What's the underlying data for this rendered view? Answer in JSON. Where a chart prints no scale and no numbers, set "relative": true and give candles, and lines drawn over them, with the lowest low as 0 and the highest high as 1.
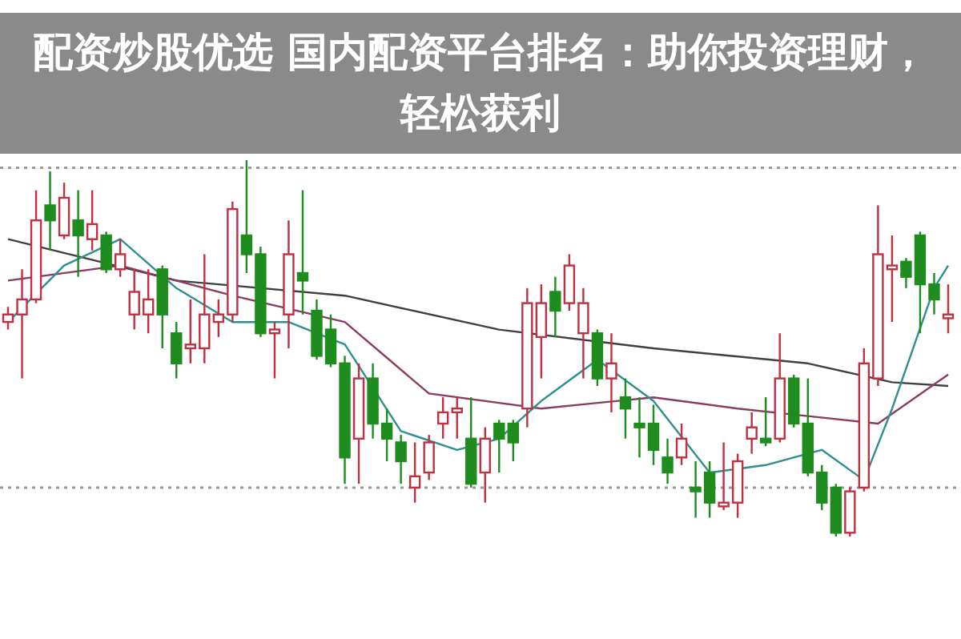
{
  "chart_data": {
    "type": "candlestick",
    "title": "配资炒股优选 国内配资平台排名：助你投资理财，轻松获利",
    "relative": true,
    "categories": [
      null,
      null,
      null,
      null,
      null,
      null,
      null,
      null,
      null,
      null,
      null,
      null,
      null,
      null,
      null,
      null,
      null,
      null,
      null,
      null,
      null,
      null,
      null,
      null,
      null,
      null,
      null,
      null,
      null,
      null,
      null,
      null,
      null,
      null,
      null,
      null,
      null,
      null,
      null,
      null,
      null,
      null,
      null,
      null,
      null,
      null,
      null,
      null,
      null,
      null,
      null,
      null,
      null,
      null,
      null,
      null,
      null,
      null,
      null,
      null,
      null,
      null,
      null,
      null,
      null,
      null,
      null,
      null
    ],
    "ohlc": [
      [
        0.57,
        0.61,
        0.55,
        0.59
      ],
      [
        0.59,
        0.71,
        0.42,
        0.63
      ],
      [
        0.63,
        0.92,
        0.62,
        0.84
      ],
      [
        0.88,
        0.97,
        0.76,
        0.84
      ],
      [
        0.8,
        0.94,
        0.79,
        0.9
      ],
      [
        0.84,
        0.92,
        0.69,
        0.8
      ],
      [
        0.79,
        0.92,
        0.76,
        0.83
      ],
      [
        0.8,
        0.81,
        0.7,
        0.71
      ],
      [
        0.71,
        0.79,
        0.69,
        0.75
      ],
      [
        0.59,
        0.71,
        0.55,
        0.65
      ],
      [
        0.59,
        0.71,
        0.54,
        0.63
      ],
      [
        0.71,
        0.72,
        0.5,
        0.59
      ],
      [
        0.54,
        0.57,
        0.42,
        0.46
      ],
      [
        0.5,
        0.63,
        0.46,
        0.51
      ],
      [
        0.5,
        0.75,
        0.46,
        0.59
      ],
      [
        0.57,
        0.63,
        0.53,
        0.59
      ],
      [
        0.59,
        0.89,
        0.57,
        0.87
      ],
      [
        0.8,
        1.0,
        0.7,
        0.75
      ],
      [
        0.75,
        0.77,
        0.53,
        0.54
      ],
      [
        0.54,
        0.57,
        0.42,
        0.55
      ],
      [
        0.59,
        0.84,
        0.5,
        0.75
      ],
      [
        0.7,
        0.92,
        0.59,
        0.68
      ],
      [
        0.6,
        0.63,
        0.47,
        0.48
      ],
      [
        0.55,
        0.59,
        0.45,
        0.46
      ],
      [
        0.46,
        0.48,
        0.14,
        0.21
      ],
      [
        0.26,
        0.46,
        0.14,
        0.42
      ],
      [
        0.42,
        0.46,
        0.26,
        0.3
      ],
      [
        0.3,
        0.34,
        0.2,
        0.26
      ],
      [
        0.25,
        0.27,
        0.14,
        0.2
      ],
      [
        0.13,
        0.25,
        0.09,
        0.16
      ],
      [
        0.17,
        0.27,
        0.15,
        0.25
      ],
      [
        0.3,
        0.37,
        0.26,
        0.33
      ],
      [
        0.33,
        0.37,
        0.26,
        0.34
      ],
      [
        0.26,
        0.37,
        0.13,
        0.14
      ],
      [
        0.17,
        0.29,
        0.09,
        0.26
      ],
      [
        0.3,
        0.31,
        0.17,
        0.26
      ],
      [
        0.3,
        0.31,
        0.2,
        0.25
      ],
      [
        0.34,
        0.66,
        0.29,
        0.62
      ],
      [
        0.53,
        0.67,
        0.42,
        0.62
      ],
      [
        0.65,
        0.69,
        0.53,
        0.6
      ],
      [
        0.62,
        0.75,
        0.6,
        0.72
      ],
      [
        0.54,
        0.66,
        0.42,
        0.62
      ],
      [
        0.54,
        0.55,
        0.4,
        0.42
      ],
      [
        0.42,
        0.54,
        0.33,
        0.46
      ],
      [
        0.37,
        0.42,
        0.26,
        0.34
      ],
      [
        0.3,
        0.37,
        0.21,
        0.29
      ],
      [
        0.3,
        0.35,
        0.19,
        0.23
      ],
      [
        0.21,
        0.26,
        0.14,
        0.17
      ],
      [
        0.21,
        0.3,
        0.19,
        0.26
      ],
      [
        0.13,
        0.2,
        0.05,
        0.12
      ],
      [
        0.17,
        0.2,
        0.05,
        0.09
      ],
      [
        0.08,
        0.25,
        0.07,
        0.09
      ],
      [
        0.09,
        0.22,
        0.05,
        0.2
      ],
      [
        0.26,
        0.33,
        0.22,
        0.29
      ],
      [
        0.26,
        0.37,
        0.24,
        0.25
      ],
      [
        0.26,
        0.54,
        0.25,
        0.42
      ],
      [
        0.42,
        0.43,
        0.29,
        0.3
      ],
      [
        0.3,
        0.42,
        0.16,
        0.17
      ],
      [
        0.17,
        0.19,
        0.07,
        0.09
      ],
      [
        0.13,
        0.14,
        0.0,
        0.01
      ],
      [
        0.01,
        0.13,
        0.0,
        0.12
      ],
      [
        0.13,
        0.5,
        0.12,
        0.46
      ],
      [
        0.42,
        0.88,
        0.4,
        0.75
      ],
      [
        0.71,
        0.8,
        0.57,
        0.72
      ],
      [
        0.73,
        0.74,
        0.66,
        0.69
      ],
      [
        0.8,
        0.81,
        0.54,
        0.67
      ],
      [
        0.67,
        0.7,
        0.59,
        0.63
      ],
      [
        0.58,
        0.67,
        0.54,
        0.59
      ]
    ],
    "colors": [
      "#c03040",
      "#c03040",
      "#c03040",
      "#1e8c1e",
      "#c03040",
      "#1e8c1e",
      "#c03040",
      "#1e8c1e",
      "#c03040",
      "#c03040",
      "#c03040",
      "#1e8c1e",
      "#1e8c1e",
      "#c03040",
      "#c03040",
      "#c03040",
      "#c03040",
      "#1e8c1e",
      "#1e8c1e",
      "#c03040",
      "#c03040",
      "#1e8c1e",
      "#1e8c1e",
      "#1e8c1e",
      "#1e8c1e",
      "#c03040",
      "#1e8c1e",
      "#1e8c1e",
      "#1e8c1e",
      "#c03040",
      "#c03040",
      "#c03040",
      "#c03040",
      "#1e8c1e",
      "#c03040",
      "#1e8c1e",
      "#1e8c1e",
      "#c03040",
      "#c03040",
      "#1e8c1e",
      "#c03040",
      "#c03040",
      "#1e8c1e",
      "#c03040",
      "#1e8c1e",
      "#1e8c1e",
      "#1e8c1e",
      "#1e8c1e",
      "#c03040",
      "#1e8c1e",
      "#1e8c1e",
      "#c03040",
      "#c03040",
      "#c03040",
      "#1e8c1e",
      "#c03040",
      "#1e8c1e",
      "#1e8c1e",
      "#1e8c1e",
      "#1e8c1e",
      "#c03040",
      "#c03040",
      "#c03040",
      "#c03040",
      "#1e8c1e",
      "#1e8c1e",
      "#1e8c1e",
      "#c03040"
    ],
    "series": [
      {
        "type": "line",
        "color": "#404040",
        "values": [
          0.79,
          null,
          null,
          null,
          null,
          null,
          null,
          null,
          null,
          null,
          null,
          null,
          0.68,
          null,
          null,
          null,
          null,
          null,
          null,
          null,
          null,
          null,
          null,
          null,
          0.64,
          null,
          null,
          null,
          null,
          null,
          null,
          null,
          null,
          null,
          null,
          0.55,
          null,
          null,
          null,
          null,
          null,
          null,
          null,
          null,
          null,
          null,
          0.5,
          null,
          null,
          null,
          null,
          null,
          null,
          null,
          null,
          null,
          null,
          0.46,
          null,
          null,
          null,
          null,
          null,
          0.41,
          null,
          null,
          null,
          0.4
        ]
      },
      {
        "type": "line",
        "color": "#8b3a62",
        "values": [
          0.68,
          null,
          null,
          null,
          null,
          null,
          null,
          null,
          0.72,
          null,
          null,
          null,
          null,
          null,
          null,
          null,
          0.64,
          null,
          null,
          null,
          null,
          null,
          null,
          null,
          0.57,
          null,
          null,
          null,
          null,
          null,
          0.38,
          null,
          null,
          null,
          null,
          null,
          null,
          null,
          0.34,
          null,
          null,
          null,
          null,
          null,
          null,
          null,
          0.37,
          null,
          null,
          null,
          null,
          null,
          0.34,
          null,
          null,
          null,
          null,
          0.32,
          null,
          null,
          null,
          null,
          0.3,
          null,
          null,
          null,
          null,
          0.43
        ]
      },
      {
        "type": "line",
        "color": "#2f8f8f",
        "values": [
          0.57,
          null,
          null,
          null,
          0.72,
          null,
          null,
          null,
          0.79,
          null,
          null,
          null,
          0.66,
          null,
          null,
          null,
          0.57,
          null,
          null,
          null,
          0.57,
          null,
          null,
          null,
          0.51,
          null,
          null,
          null,
          0.28,
          null,
          null,
          null,
          0.23,
          null,
          null,
          0.26,
          null,
          null,
          0.36,
          null,
          null,
          null,
          0.47,
          null,
          null,
          null,
          0.36,
          null,
          null,
          null,
          0.17,
          null,
          null,
          null,
          0.19,
          null,
          null,
          null,
          0.23,
          null,
          null,
          0.15,
          null,
          0.34,
          null,
          null,
          0.66,
          0.72
        ]
      }
    ],
    "ref_lines": [
      {
        "axis": "y",
        "value": 0.98,
        "color": "#999999",
        "line_style": "dotted"
      },
      {
        "axis": "y",
        "value": 0.13,
        "color": "#999999",
        "line_style": "dotted"
      }
    ]
  }
}
